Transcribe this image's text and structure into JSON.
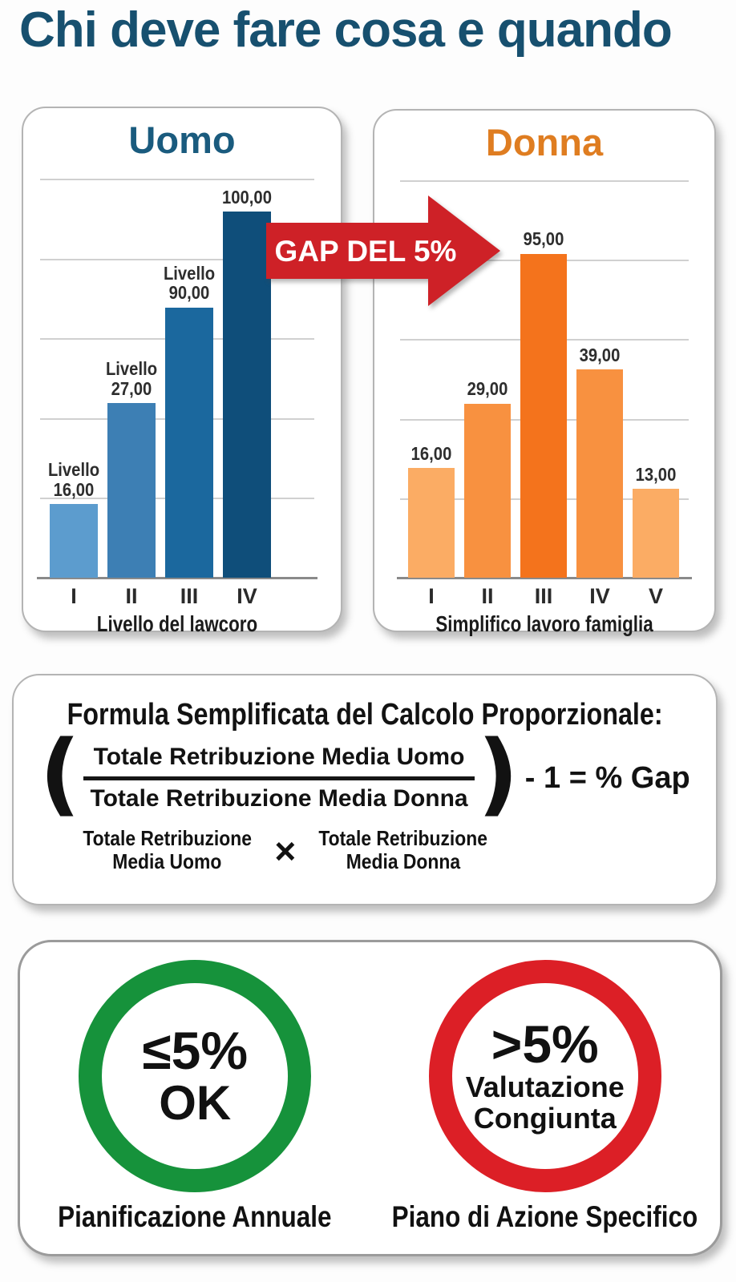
{
  "page": {
    "title": "Chi deve fare cosa e quando"
  },
  "arrow": {
    "label": "GAP DEL 5%",
    "color": "#CE2127",
    "text_color": "#FFFFFF"
  },
  "chart_data": [
    {
      "type": "bar",
      "title": "Uomo",
      "title_color": "#1A5B7E",
      "categories": [
        "I",
        "II",
        "III",
        "IV"
      ],
      "values": [
        16,
        27,
        90,
        100
      ],
      "value_labels": [
        [
          "Livello",
          "16,00"
        ],
        [
          "Livello",
          "27,00"
        ],
        [
          "Livello",
          "90,00"
        ],
        [
          "100,00"
        ]
      ],
      "bar_colors": [
        "#5C9CCE",
        "#3D7FB4",
        "#1B689E",
        "#0F4E7A"
      ],
      "xlabel": "Livello del lawcoro",
      "grid": true,
      "legend": false,
      "bar_height_pct": [
        18.5,
        43.8,
        67.7,
        91.7
      ]
    },
    {
      "type": "bar",
      "title": "Donna",
      "title_color": "#DF7D21",
      "categories": [
        "I",
        "II",
        "III",
        "IV",
        "V"
      ],
      "values": [
        16,
        29,
        95,
        39,
        13
      ],
      "value_labels": [
        [
          "16,00"
        ],
        [
          "29,00"
        ],
        [
          "95,00"
        ],
        [
          "39,00"
        ],
        [
          "13,00"
        ]
      ],
      "bar_colors": [
        "#FBAC64",
        "#F89140",
        "#F4731C",
        "#F89140",
        "#FBAC64"
      ],
      "xlabel": "Simplifico lavoro famiglia",
      "grid": true,
      "legend": false,
      "bar_height_pct": [
        27.6,
        43.8,
        81.5,
        52.4,
        22.4
      ]
    }
  ],
  "formula": {
    "heading": "Formula Semplificata del Calcolo Proporzionale:",
    "open_paren": "(",
    "numerator": "Totale Retribuzione Media Uomo",
    "denominator": "Totale Retribuzione Media Donna",
    "close_paren": ")",
    "result": "- 1 = % Gap",
    "left_factor_line1": "Totale Retribuzione",
    "left_factor_line2": "Media Uomo",
    "multiply_sign": "×",
    "right_factor_line1": "Totale Retribuzione",
    "right_factor_line2": "Media Donna"
  },
  "decision": {
    "ok": {
      "threshold": "≤5%",
      "verdict": "OK",
      "caption": "Pianificazione Annuale",
      "ring_color": "#16923B"
    },
    "over": {
      "threshold": ">5%",
      "line1": "Valutazione",
      "line2": "Congiunta",
      "caption": "Piano di Azione Specifico",
      "ring_color": "#DC1F26"
    }
  }
}
